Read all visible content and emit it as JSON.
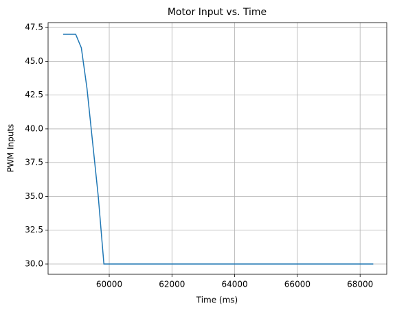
{
  "chart_data": {
    "type": "line",
    "title": "Motor Input vs. Time",
    "x_label": "Time (ms)",
    "y_label": "PWM Inputs",
    "x": [
      58530,
      58930,
      59110,
      59290,
      59650,
      59830,
      68420
    ],
    "values": [
      47,
      47,
      46,
      43,
      35,
      30,
      30
    ],
    "color": "#1f77b4",
    "xlim": [
      58050,
      68850
    ],
    "xticks": [
      60000,
      62000,
      64000,
      66000,
      68000
    ],
    "ylim": [
      29.24,
      47.86
    ],
    "yticks": [
      {
        "value": 30,
        "label": "30.0"
      },
      32.5,
      {
        "value": 35,
        "label": "35.0"
      },
      37.5,
      {
        "value": 40,
        "label": "40.0"
      },
      42.5,
      {
        "value": 45,
        "label": "45.0"
      },
      47.5
    ],
    "grid": true
  }
}
